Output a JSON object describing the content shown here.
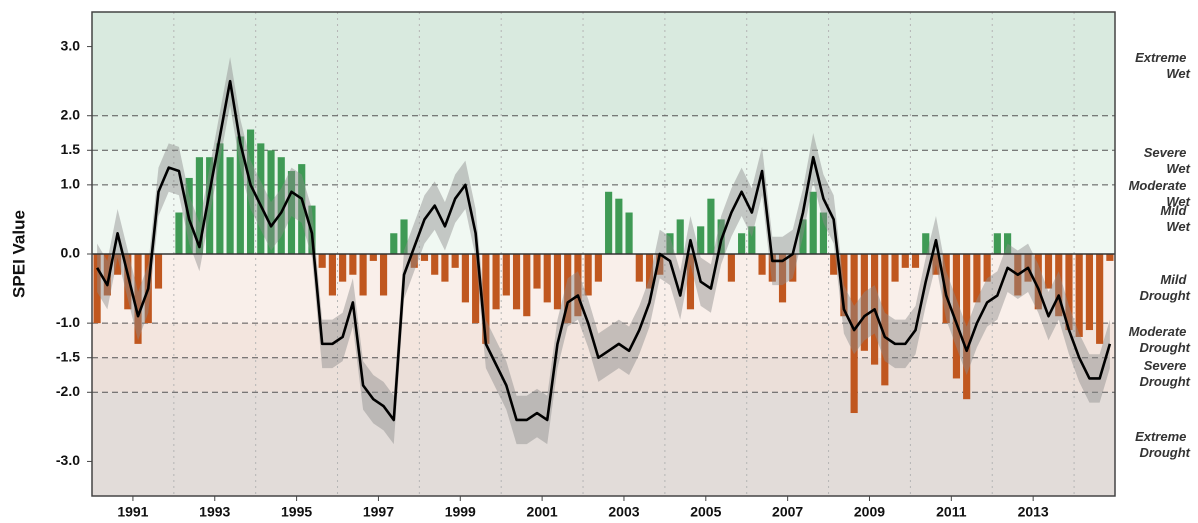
{
  "chart_data": {
    "type": "spei",
    "y_label": "SPEI Value",
    "xlim": [
      1990,
      2015
    ],
    "ylim": [
      -3.5,
      3.5
    ],
    "xticks": [
      1991,
      1993,
      1995,
      1997,
      1999,
      2001,
      2003,
      2005,
      2007,
      2009,
      2011,
      2013
    ],
    "xgrid": [
      1992,
      1994,
      1996,
      1998,
      2000,
      2002,
      2004,
      2006,
      2008,
      2010,
      2012,
      2014
    ],
    "yticks": [
      {
        "value": 3,
        "label": "3.0"
      },
      {
        "value": 2,
        "label": "2.0"
      },
      1.5,
      {
        "value": 1,
        "label": "1.0"
      },
      {
        "value": 0,
        "label": "0.0"
      },
      {
        "value": -1,
        "label": "-1.0"
      },
      -1.5,
      {
        "value": -2,
        "label": "-2.0"
      },
      {
        "value": -3,
        "label": "-3.0"
      }
    ],
    "bands": [
      {
        "name": "Extreme Wet",
        "min": 2,
        "max": null,
        "color": "#d9eadf"
      },
      {
        "name": "Severe Wet",
        "min": 1.5,
        "max": 2,
        "color": "#e2f0e6"
      },
      {
        "name": "Moderate Wet",
        "min": 1,
        "max": 1.5,
        "color": "#eaf5ed"
      },
      {
        "name": "Mild Wet",
        "min": 0,
        "max": 1,
        "color": "#f0f8f2"
      },
      {
        "name": "Mild Drought",
        "min": -1,
        "max": 0,
        "color": "#f9efea"
      },
      {
        "name": "Moderate Drought",
        "min": -1.5,
        "max": -1,
        "color": "#f3e5de"
      },
      {
        "name": "Severe Drought",
        "min": -2,
        "max": -1.5,
        "color": "#ebdfd9"
      },
      {
        "name": "Extreme Drought",
        "min": null,
        "max": -2,
        "color": "#e2dcd9"
      }
    ],
    "x": [
      1990,
      1990.25,
      1990.5,
      1990.75,
      1991,
      1991.25,
      1991.5,
      1991.75,
      1992,
      1992.25,
      1992.5,
      1992.75,
      1993,
      1993.25,
      1993.5,
      1993.75,
      1994,
      1994.25,
      1994.5,
      1994.75,
      1995,
      1995.25,
      1995.5,
      1995.75,
      1996,
      1996.25,
      1996.5,
      1996.75,
      1997,
      1997.25,
      1997.5,
      1997.75,
      1998,
      1998.25,
      1998.5,
      1998.75,
      1999,
      1999.25,
      1999.5,
      1999.75,
      2000,
      2000.25,
      2000.5,
      2000.75,
      2001,
      2001.25,
      2001.5,
      2001.75,
      2002,
      2002.25,
      2002.5,
      2002.75,
      2003,
      2003.25,
      2003.5,
      2003.75,
      2004,
      2004.25,
      2004.5,
      2004.75,
      2005,
      2005.25,
      2005.5,
      2005.75,
      2006,
      2006.25,
      2006.5,
      2006.75,
      2007,
      2007.25,
      2007.5,
      2007.75,
      2008,
      2008.25,
      2008.5,
      2008.75,
      2009,
      2009.25,
      2009.5,
      2009.75,
      2010,
      2010.25,
      2010.5,
      2010.75,
      2011,
      2011.25,
      2011.5,
      2011.75,
      2012,
      2012.25,
      2012.5,
      2012.75,
      2013,
      2013.25,
      2013.5,
      2013.75,
      2014,
      2014.25,
      2014.5,
      2014.75
    ],
    "bar_values": [
      -1.0,
      -0.6,
      -0.3,
      -0.8,
      -1.3,
      -1.0,
      -0.5,
      0.0,
      0.6,
      1.1,
      1.4,
      1.4,
      1.6,
      1.4,
      1.7,
      1.8,
      1.6,
      1.5,
      1.4,
      1.2,
      1.3,
      0.7,
      -0.2,
      -0.6,
      -0.4,
      -0.3,
      -0.6,
      -0.1,
      -0.6,
      0.3,
      0.5,
      -0.2,
      -0.1,
      -0.3,
      -0.4,
      -0.2,
      -0.7,
      -1.0,
      -1.3,
      -0.8,
      -0.6,
      -0.8,
      -0.9,
      -0.5,
      -0.7,
      -0.8,
      -1.0,
      -0.9,
      -0.6,
      -0.4,
      0.9,
      0.8,
      0.6,
      -0.4,
      -0.5,
      -0.3,
      0.3,
      0.5,
      -0.8,
      0.4,
      0.8,
      0.5,
      -0.4,
      0.3,
      0.4,
      -0.3,
      -0.4,
      -0.7,
      -0.4,
      0.5,
      0.9,
      0.6,
      -0.3,
      -0.9,
      -2.3,
      -1.4,
      -1.6,
      -1.9,
      -0.4,
      -0.2,
      -0.2,
      0.3,
      -0.3,
      -1.0,
      -1.8,
      -2.1,
      -0.7,
      -0.4,
      0.3,
      0.3,
      -0.6,
      -0.4,
      -0.8,
      -0.5,
      -0.9,
      -1.1,
      -1.2,
      -1.1,
      -1.3,
      -0.1
    ],
    "bar_colors": {
      "positive": "#3f9a55",
      "negative": "#c0571f"
    },
    "line_values": [
      -0.2,
      -0.45,
      0.3,
      -0.3,
      -0.9,
      -0.5,
      0.9,
      1.25,
      1.2,
      0.5,
      0.1,
      0.9,
      1.7,
      2.5,
      1.6,
      1.0,
      0.7,
      0.4,
      0.6,
      0.9,
      0.8,
      0.3,
      -1.3,
      -1.3,
      -1.2,
      -0.7,
      -1.9,
      -2.1,
      -2.2,
      -2.4,
      -0.3,
      0.1,
      0.5,
      0.7,
      0.4,
      0.8,
      1.0,
      0.3,
      -1.3,
      -1.6,
      -1.9,
      -2.4,
      -2.4,
      -2.3,
      -2.4,
      -1.3,
      -0.7,
      -0.6,
      -1.0,
      -1.5,
      -1.4,
      -1.3,
      -1.4,
      -1.1,
      -0.7,
      0.0,
      -0.1,
      -0.6,
      0.2,
      -0.4,
      -0.5,
      0.2,
      0.6,
      0.9,
      0.6,
      1.2,
      -0.1,
      -0.1,
      0.0,
      0.6,
      1.4,
      0.8,
      0.5,
      -0.8,
      -1.1,
      -0.9,
      -0.8,
      -1.2,
      -1.3,
      -1.3,
      -1.1,
      -0.4,
      0.2,
      -0.6,
      -1.0,
      -1.4,
      -1.0,
      -0.7,
      -0.6,
      -0.2,
      -0.3,
      -0.2,
      -0.5,
      -0.9,
      -0.6,
      -1.1,
      -1.5,
      -1.8,
      -1.8,
      -1.3
    ],
    "line_color": "#000000",
    "band_halfwidth": 0.35,
    "band_color": "#8c8c8c"
  }
}
